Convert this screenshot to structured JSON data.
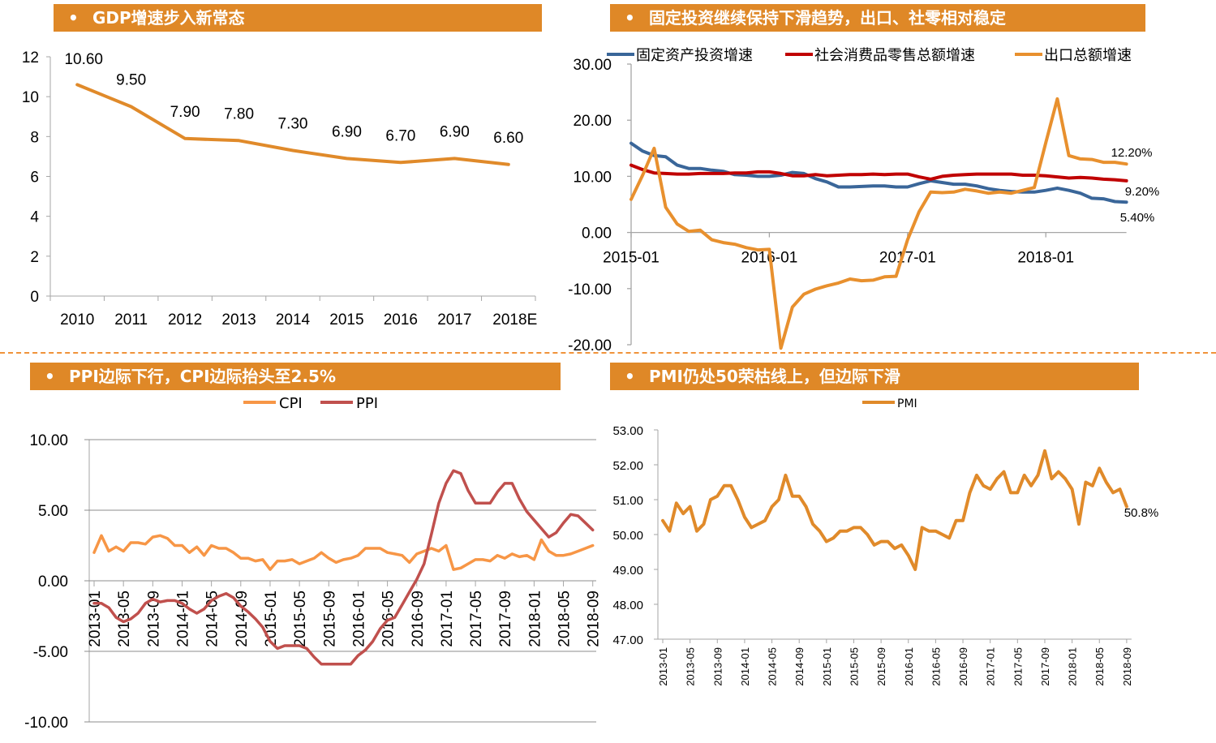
{
  "panels": {
    "gdp": {
      "title": "GDP增速步入新常态",
      "bullet": "•"
    },
    "investment": {
      "title": "固定投资继续保持下滑趋势，出口、社零相对稳定",
      "bullet": "•"
    },
    "prices": {
      "title": "PPI边际下行，CPI边际抬头至2.5%",
      "bullet": "•"
    },
    "pmi": {
      "title": "PMI仍处50荣枯线上，但边际下滑",
      "bullet": "•"
    }
  },
  "colors": {
    "header_bg": "#df8827",
    "gdp_line": "#e08a2a",
    "fai": "#3a6699",
    "retail": "#c00000",
    "export": "#e8902e",
    "cpi": "#f79646",
    "ppi": "#c0504d",
    "pmi": "#e08a2a",
    "grid": "#a6a6a6"
  },
  "chart_data": [
    {
      "id": "gdp",
      "type": "line",
      "title": "GDP增速步入新常态",
      "categories": [
        "2010",
        "2011",
        "2012",
        "2013",
        "2014",
        "2015",
        "2016",
        "2017",
        "2018E"
      ],
      "values": [
        10.6,
        9.5,
        7.9,
        7.8,
        7.3,
        6.9,
        6.7,
        6.9,
        6.6
      ],
      "data_labels": [
        "10.60",
        "9.50",
        "7.90",
        "7.80",
        "7.30",
        "6.90",
        "6.70",
        "6.90",
        "6.60"
      ],
      "yticks": [
        "0",
        "2",
        "4",
        "6",
        "8",
        "10",
        "12"
      ],
      "ylim": [
        0,
        12
      ],
      "grid": false
    },
    {
      "id": "investment",
      "type": "line",
      "title": "固定投资继续保持下滑趋势，出口、社零相对稳定",
      "x_start": "2015-01",
      "xticks": [
        "2015-01",
        "2016-01",
        "2017-01",
        "2018-01"
      ],
      "yticks": [
        "30.00",
        "20.00",
        "10.00",
        "0.00",
        "-10.00",
        "-20.00"
      ],
      "ylim": [
        -20,
        30
      ],
      "legend_position": "top",
      "series": [
        {
          "name": "固定资产投资增速",
          "color_key": "fai",
          "values": [
            15.9,
            14.5,
            13.7,
            13.5,
            12.0,
            11.4,
            11.4,
            11.1,
            10.9,
            10.3,
            10.2,
            10.0,
            10.0,
            10.2,
            10.7,
            10.5,
            9.6,
            9.0,
            8.1,
            8.1,
            8.2,
            8.3,
            8.3,
            8.1,
            8.1,
            8.7,
            9.2,
            8.9,
            8.6,
            8.6,
            8.3,
            7.8,
            7.5,
            7.3,
            7.2,
            7.2,
            7.5,
            7.9,
            7.5,
            7.0,
            6.1,
            6.0,
            5.5,
            5.4
          ],
          "end_label": "5.40%"
        },
        {
          "name": "社会消费品零售总额增速",
          "color_key": "retail",
          "values": [
            12.0,
            11.2,
            10.6,
            10.5,
            10.4,
            10.4,
            10.5,
            10.5,
            10.5,
            10.6,
            10.6,
            10.8,
            10.8,
            10.5,
            10.1,
            10.1,
            10.3,
            10.1,
            10.2,
            10.3,
            10.3,
            10.4,
            10.3,
            10.4,
            10.4,
            9.9,
            9.5,
            10.0,
            10.2,
            10.3,
            10.4,
            10.4,
            10.4,
            10.4,
            10.2,
            10.2,
            10.1,
            9.9,
            9.7,
            9.8,
            9.7,
            9.5,
            9.4,
            9.2
          ],
          "end_label": "9.20%"
        },
        {
          "name": "出口总额增速",
          "color_key": "export",
          "values": [
            5.9,
            10.2,
            15.0,
            4.5,
            1.5,
            0.2,
            0.4,
            -1.3,
            -1.8,
            -2.1,
            -2.7,
            -3.1,
            -3.0,
            -20.6,
            -13.3,
            -11.0,
            -10.1,
            -9.5,
            -9.0,
            -8.3,
            -8.6,
            -8.5,
            -7.9,
            -7.8,
            -1.3,
            3.7,
            7.2,
            7.1,
            7.2,
            7.7,
            7.4,
            7.0,
            7.2,
            7.0,
            7.5,
            8.0,
            16.0,
            23.8,
            13.7,
            13.1,
            13.0,
            12.5,
            12.5,
            12.2
          ],
          "end_label": "12.20%"
        }
      ]
    },
    {
      "id": "prices",
      "type": "line",
      "title": "PPI边际下行，CPI边际抬头至2.5%",
      "x_start": "2013-01",
      "xticks": [
        "2013-01",
        "2013-05",
        "2013-09",
        "2014-01",
        "2014-05",
        "2014-09",
        "2015-01",
        "2015-05",
        "2015-09",
        "2016-01",
        "2016-05",
        "2016-09",
        "2017-01",
        "2017-05",
        "2017-09",
        "2018-01",
        "2018-05",
        "2018-09"
      ],
      "yticks": [
        "10.00",
        "5.00",
        "0.00",
        "-5.00",
        "-10.00"
      ],
      "ylim": [
        -10,
        10
      ],
      "legend_position": "top",
      "series": [
        {
          "name": "CPI",
          "color_key": "cpi",
          "values": [
            2.0,
            3.2,
            2.1,
            2.4,
            2.1,
            2.7,
            2.7,
            2.6,
            3.1,
            3.2,
            3.0,
            2.5,
            2.5,
            2.0,
            2.4,
            1.8,
            2.5,
            2.3,
            2.3,
            2.0,
            1.6,
            1.6,
            1.4,
            1.5,
            0.8,
            1.4,
            1.4,
            1.5,
            1.2,
            1.4,
            1.6,
            2.0,
            1.6,
            1.3,
            1.5,
            1.6,
            1.8,
            2.3,
            2.3,
            2.3,
            2.0,
            1.9,
            1.8,
            1.3,
            1.9,
            2.1,
            2.3,
            2.1,
            2.5,
            0.8,
            0.9,
            1.2,
            1.5,
            1.5,
            1.4,
            1.8,
            1.6,
            1.9,
            1.7,
            1.8,
            1.5,
            2.9,
            2.1,
            1.8,
            1.8,
            1.9,
            2.1,
            2.3,
            2.5
          ]
        },
        {
          "name": "PPI",
          "color_key": "ppi",
          "values": [
            -1.6,
            -1.6,
            -1.9,
            -2.6,
            -2.9,
            -2.7,
            -2.3,
            -1.6,
            -1.3,
            -1.5,
            -1.4,
            -1.4,
            -1.6,
            -2.0,
            -2.3,
            -2.0,
            -1.4,
            -1.1,
            -0.9,
            -1.2,
            -1.8,
            -2.2,
            -2.7,
            -3.3,
            -4.3,
            -4.8,
            -4.6,
            -4.6,
            -4.6,
            -4.8,
            -5.4,
            -5.9,
            -5.9,
            -5.9,
            -5.9,
            -5.9,
            -5.3,
            -4.9,
            -4.3,
            -3.4,
            -2.8,
            -2.6,
            -1.7,
            -0.8,
            0.1,
            1.2,
            3.3,
            5.5,
            6.9,
            7.8,
            7.6,
            6.4,
            5.5,
            5.5,
            5.5,
            6.3,
            6.9,
            6.9,
            5.8,
            4.9,
            4.3,
            3.7,
            3.1,
            3.4,
            4.1,
            4.7,
            4.6,
            4.1,
            3.6
          ]
        }
      ]
    },
    {
      "id": "pmi",
      "type": "line",
      "title": "PMI仍处50荣枯线上，但边际下滑",
      "x_start": "2013-01",
      "xticks": [
        "2013-01",
        "2013-05",
        "2013-09",
        "2014-01",
        "2014-05",
        "2014-09",
        "2015-01",
        "2015-05",
        "2015-09",
        "2016-01",
        "2016-05",
        "2016-09",
        "2017-01",
        "2017-05",
        "2017-09",
        "2018-01",
        "2018-05",
        "2018-09"
      ],
      "yticks": [
        "53.00",
        "52.00",
        "51.00",
        "50.00",
        "49.00",
        "48.00",
        "47.00"
      ],
      "ylim": [
        47,
        53
      ],
      "legend_position": "top",
      "series": [
        {
          "name": "PMI",
          "color_key": "pmi",
          "values": [
            50.4,
            50.1,
            50.9,
            50.6,
            50.8,
            50.1,
            50.3,
            51.0,
            51.1,
            51.4,
            51.4,
            51.0,
            50.5,
            50.2,
            50.3,
            50.4,
            50.8,
            51.0,
            51.7,
            51.1,
            51.1,
            50.8,
            50.3,
            50.1,
            49.8,
            49.9,
            50.1,
            50.1,
            50.2,
            50.2,
            50.0,
            49.7,
            49.8,
            49.8,
            49.6,
            49.7,
            49.4,
            49.0,
            50.2,
            50.1,
            50.1,
            50.0,
            49.9,
            50.4,
            50.4,
            51.2,
            51.7,
            51.4,
            51.3,
            51.6,
            51.8,
            51.2,
            51.2,
            51.7,
            51.4,
            51.7,
            52.4,
            51.6,
            51.8,
            51.6,
            51.3,
            50.3,
            51.5,
            51.4,
            51.9,
            51.5,
            51.2,
            51.3,
            50.8
          ],
          "end_label": "50.8%"
        }
      ]
    }
  ]
}
